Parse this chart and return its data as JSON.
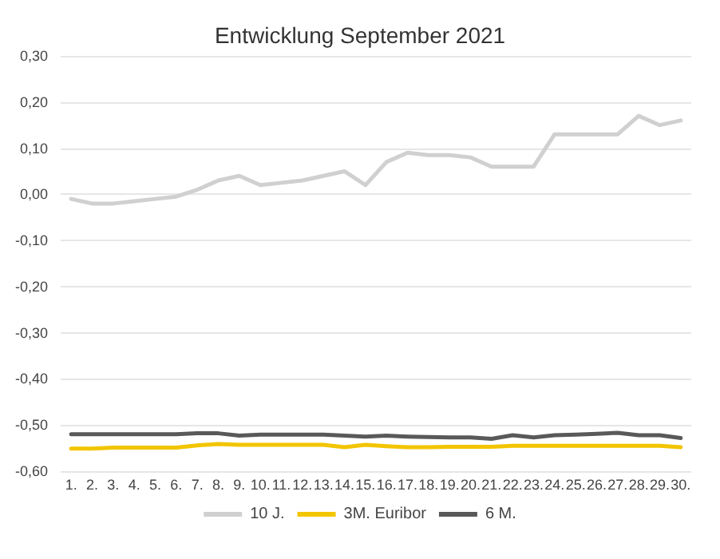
{
  "chart_data": {
    "type": "line",
    "title": "Entwicklung September 2021",
    "categories": [
      "1.",
      "2.",
      "3.",
      "4.",
      "5.",
      "6.",
      "7.",
      "8.",
      "9.",
      "10.",
      "11.",
      "12.",
      "13.",
      "14.",
      "15.",
      "16.",
      "17.",
      "18.",
      "19.",
      "20.",
      "21.",
      "22.",
      "23.",
      "24.",
      "25.",
      "26.",
      "27.",
      "28.",
      "29.",
      "30."
    ],
    "series": [
      {
        "name": "10 J.",
        "color": "#d0d0d0",
        "values": [
          -0.01,
          -0.02,
          -0.02,
          -0.015,
          -0.01,
          -0.005,
          0.01,
          0.03,
          0.04,
          0.02,
          0.025,
          0.03,
          0.04,
          0.05,
          0.02,
          0.07,
          0.09,
          0.085,
          0.085,
          0.08,
          0.06,
          0.06,
          0.06,
          0.13,
          0.13,
          0.13,
          0.13,
          0.17,
          0.15,
          0.16
        ]
      },
      {
        "name": "3M. Euribor",
        "color": "#f2c500",
        "values": [
          -0.551,
          -0.551,
          -0.549,
          -0.549,
          -0.549,
          -0.549,
          -0.544,
          -0.541,
          -0.543,
          -0.543,
          -0.543,
          -0.543,
          -0.543,
          -0.548,
          -0.543,
          -0.546,
          -0.548,
          -0.548,
          -0.547,
          -0.547,
          -0.547,
          -0.545,
          -0.545,
          -0.545,
          -0.545,
          -0.545,
          -0.545,
          -0.545,
          -0.545,
          -0.548
        ]
      },
      {
        "name": "6 M.",
        "color": "#595959",
        "values": [
          -0.52,
          -0.52,
          -0.52,
          -0.52,
          -0.52,
          -0.52,
          -0.518,
          -0.518,
          -0.523,
          -0.521,
          -0.521,
          -0.521,
          -0.521,
          -0.523,
          -0.525,
          -0.523,
          -0.525,
          -0.526,
          -0.527,
          -0.527,
          -0.53,
          -0.522,
          -0.527,
          -0.522,
          -0.521,
          -0.519,
          -0.517,
          -0.522,
          -0.522,
          -0.528
        ]
      }
    ],
    "ylim": [
      -0.6,
      0.3
    ],
    "yticks": [
      {
        "value": -0.6,
        "label": "-0,60"
      },
      {
        "value": -0.5,
        "label": "-0,50"
      },
      {
        "value": -0.4,
        "label": "-0,40"
      },
      {
        "value": -0.3,
        "label": "-0,30"
      },
      {
        "value": -0.2,
        "label": "-0,20"
      },
      {
        "value": -0.1,
        "label": "-0,10"
      },
      {
        "value": 0,
        "label": "0,00"
      },
      {
        "value": 0.1,
        "label": "0,10"
      },
      {
        "value": 0.2,
        "label": "0,20"
      },
      {
        "value": 0.3,
        "label": "0,30"
      }
    ],
    "grid": "y",
    "legend": "bottom",
    "marker": "none",
    "line_style": "solid"
  }
}
